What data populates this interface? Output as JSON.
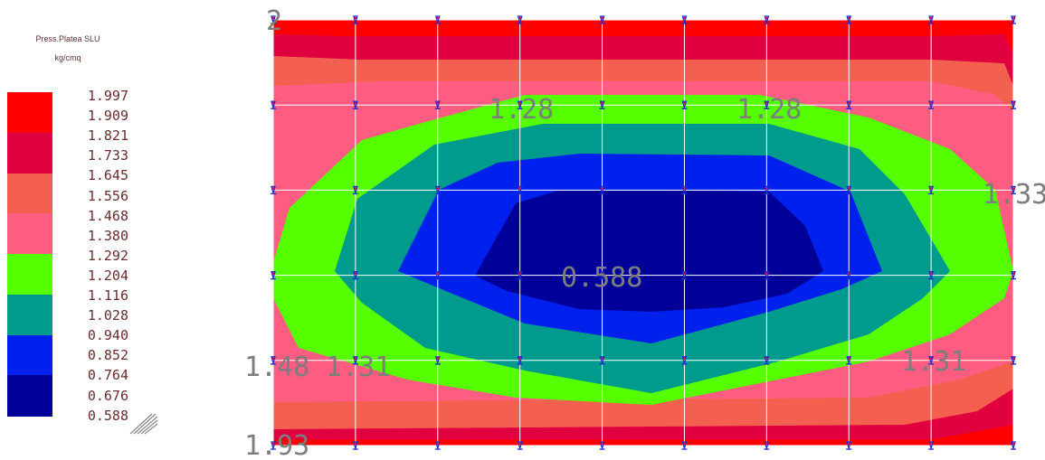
{
  "legend": {
    "title": "Press.Platea SLU",
    "unit": "kg/cmq",
    "ticks": [
      "1.997",
      "1.909",
      "1.821",
      "1.733",
      "1.645",
      "1.556",
      "1.468",
      "1.380",
      "1.292",
      "1.204",
      "1.116",
      "1.028",
      "0.940",
      "0.852",
      "0.764",
      "0.676",
      "0.588"
    ],
    "colors": [
      "#ff0000",
      "#e00040",
      "#f46050",
      "#ff5c82",
      "#55ff00",
      "#009b8c",
      "#0020ee",
      "#000099"
    ]
  },
  "chart_data": {
    "type": "heatmap",
    "title": "Press.Platea SLU",
    "colorbar_unit": "kg/cmq",
    "colorbar_ticks": [
      1.997,
      1.909,
      1.821,
      1.733,
      1.645,
      1.556,
      1.468,
      1.38,
      1.292,
      1.204,
      1.116,
      1.028,
      0.94,
      0.852,
      0.764,
      0.676,
      0.588
    ],
    "bands": [
      {
        "range": [
          1.821,
          1.997
        ],
        "color": "#ff0000"
      },
      {
        "range": [
          1.645,
          1.821
        ],
        "color": "#e00040"
      },
      {
        "range": [
          1.468,
          1.645
        ],
        "color": "#f46050"
      },
      {
        "range": [
          1.292,
          1.468
        ],
        "color": "#ff5c82"
      },
      {
        "range": [
          1.116,
          1.292
        ],
        "color": "#55ff00"
      },
      {
        "range": [
          0.94,
          1.116
        ],
        "color": "#009b8c"
      },
      {
        "range": [
          0.764,
          0.94
        ],
        "color": "#0020ee"
      },
      {
        "range": [
          0.588,
          0.764
        ],
        "color": "#000099"
      }
    ],
    "mesh": {
      "columns": 10,
      "rows": 6
    },
    "labels": [
      "2",
      "1.28",
      "1.28",
      "1.33",
      "0.588",
      "1.48",
      "1.31",
      "1.31",
      "1.93"
    ]
  }
}
